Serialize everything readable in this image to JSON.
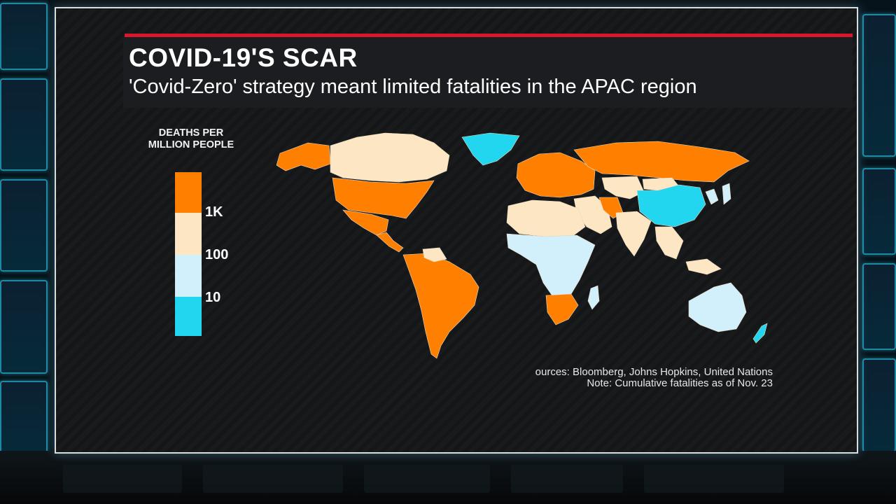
{
  "headline": "COVID-19'S SCAR",
  "subheadline": "'Covid-Zero' strategy meant limited fatalities in the APAC region",
  "legend": {
    "title_line1": "DEATHS PER",
    "title_line2": "MILLION PEOPLE",
    "ticks": [
      "1K",
      "100",
      "10"
    ],
    "bins": [
      {
        "range": ">1K",
        "color": "#ff8000"
      },
      {
        "range": "100-1K",
        "color": "#fde6c4"
      },
      {
        "range": "10-100",
        "color": "#d2f0fb"
      },
      {
        "range": "<10",
        "color": "#22d6ef"
      }
    ]
  },
  "map": {
    "type": "choropleth",
    "regions": [
      {
        "name": "Alaska",
        "bin": ">1K"
      },
      {
        "name": "Canada",
        "bin": "100-1K"
      },
      {
        "name": "United States",
        "bin": ">1K"
      },
      {
        "name": "Mexico",
        "bin": ">1K"
      },
      {
        "name": "Central America",
        "bin": ">1K"
      },
      {
        "name": "Greenland",
        "bin": "<10"
      },
      {
        "name": "South America",
        "bin": ">1K"
      },
      {
        "name": "Venezuela",
        "bin": "100-1K"
      },
      {
        "name": "Europe",
        "bin": ">1K"
      },
      {
        "name": "Russia",
        "bin": ">1K"
      },
      {
        "name": "Iran",
        "bin": ">1K"
      },
      {
        "name": "Middle East",
        "bin": "100-1K"
      },
      {
        "name": "Central Asia",
        "bin": "100-1K"
      },
      {
        "name": "Mongolia",
        "bin": "100-1K"
      },
      {
        "name": "China",
        "bin": "<10"
      },
      {
        "name": "Korea / Japan",
        "bin": "10-100"
      },
      {
        "name": "India",
        "bin": "100-1K"
      },
      {
        "name": "Southeast Asia",
        "bin": "100-1K"
      },
      {
        "name": "North Africa",
        "bin": "100-1K"
      },
      {
        "name": "Sub-Saharan Africa",
        "bin": "10-100"
      },
      {
        "name": "Southern Africa",
        "bin": ">1K"
      },
      {
        "name": "Madagascar",
        "bin": "10-100"
      },
      {
        "name": "Australia",
        "bin": "10-100"
      },
      {
        "name": "New Zealand",
        "bin": "<10"
      }
    ]
  },
  "source_line": "ources: Bloomberg, Johns Hopkins, United Nations",
  "note_line": "Note: Cumulative fatalities as of Nov. 23"
}
